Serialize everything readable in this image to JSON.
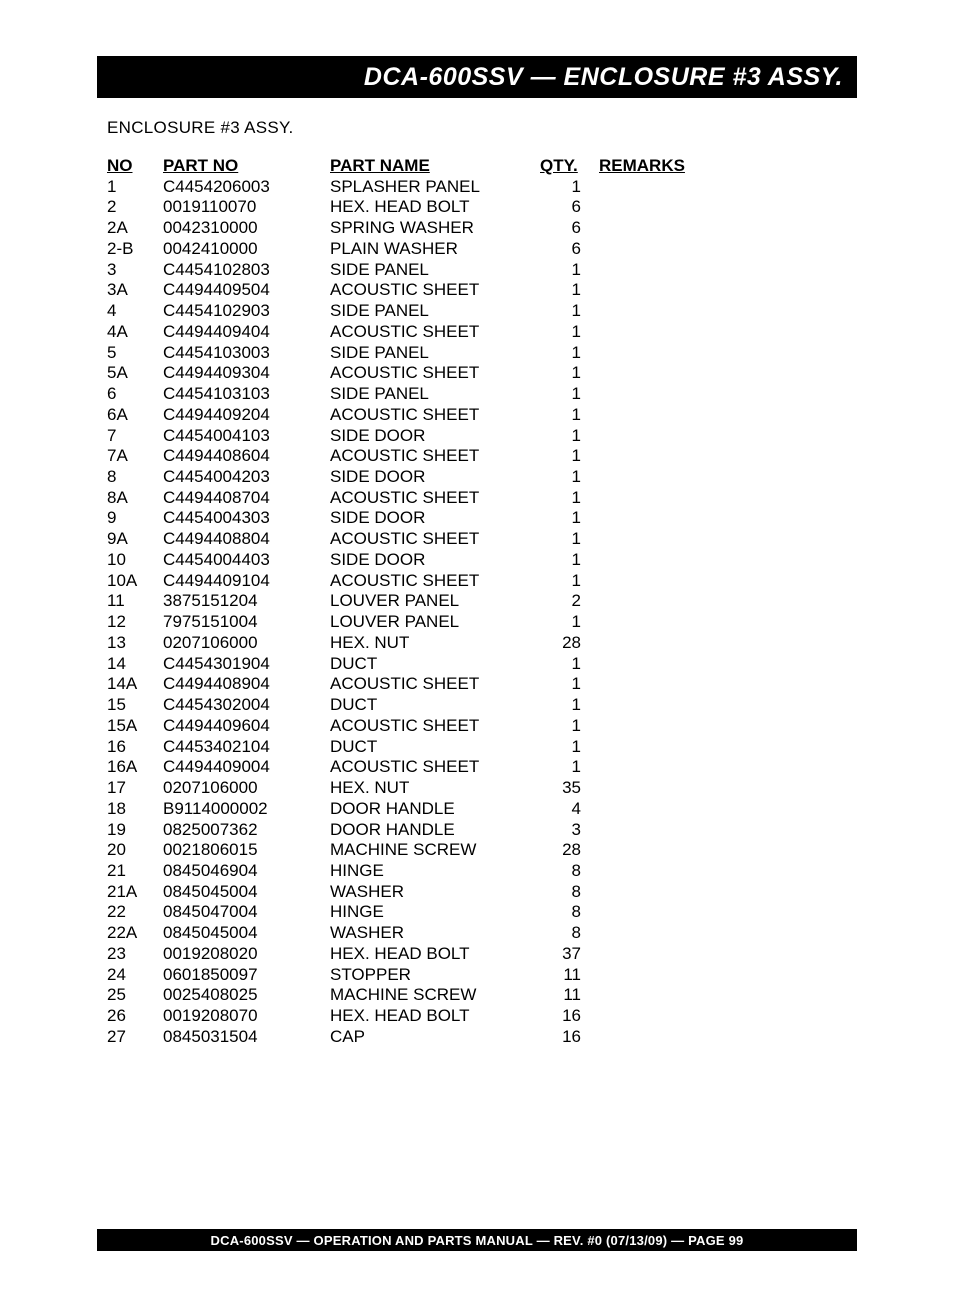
{
  "header": {
    "title": "DCA-600SSV — ENCLOSURE #3 ASSY."
  },
  "section": {
    "title": "ENCLOSURE #3 ASSY."
  },
  "table": {
    "columns": {
      "no": "NO",
      "partno": "PART NO",
      "partname": "PART NAME",
      "qty": "QTY.",
      "remarks": "REMARKS"
    },
    "rows": [
      {
        "no": "1",
        "partno": "C4454206003",
        "partname": "SPLASHER PANEL",
        "qty": "1",
        "remarks": ""
      },
      {
        "no": "2",
        "partno": "0019110070",
        "partname": "HEX. HEAD BOLT",
        "qty": "6",
        "remarks": ""
      },
      {
        "no": "2A",
        "partno": "0042310000",
        "partname": "SPRING WASHER",
        "qty": "6",
        "remarks": ""
      },
      {
        "no": "2-B",
        "partno": "0042410000",
        "partname": "PLAIN WASHER",
        "qty": "6",
        "remarks": ""
      },
      {
        "no": "3",
        "partno": "C4454102803",
        "partname": "SIDE PANEL",
        "qty": "1",
        "remarks": ""
      },
      {
        "no": "3A",
        "partno": "C4494409504",
        "partname": "ACOUSTIC SHEET",
        "qty": "1",
        "remarks": ""
      },
      {
        "no": "4",
        "partno": "C4454102903",
        "partname": "SIDE PANEL",
        "qty": "1",
        "remarks": ""
      },
      {
        "no": "4A",
        "partno": "C4494409404",
        "partname": "ACOUSTIC SHEET",
        "qty": "1",
        "remarks": ""
      },
      {
        "no": "5",
        "partno": "C4454103003",
        "partname": "SIDE PANEL",
        "qty": "1",
        "remarks": ""
      },
      {
        "no": "5A",
        "partno": "C4494409304",
        "partname": "ACOUSTIC SHEET",
        "qty": "1",
        "remarks": ""
      },
      {
        "no": "6",
        "partno": "C4454103103",
        "partname": "SIDE PANEL",
        "qty": "1",
        "remarks": ""
      },
      {
        "no": "6A",
        "partno": "C4494409204",
        "partname": "ACOUSTIC SHEET",
        "qty": "1",
        "remarks": ""
      },
      {
        "no": "7",
        "partno": "C4454004103",
        "partname": "SIDE DOOR",
        "qty": "1",
        "remarks": ""
      },
      {
        "no": "7A",
        "partno": "C4494408604",
        "partname": "ACOUSTIC SHEET",
        "qty": "1",
        "remarks": ""
      },
      {
        "no": "8",
        "partno": "C4454004203",
        "partname": "SIDE DOOR",
        "qty": "1",
        "remarks": ""
      },
      {
        "no": "8A",
        "partno": "C4494408704",
        "partname": "ACOUSTIC SHEET",
        "qty": "1",
        "remarks": ""
      },
      {
        "no": "9",
        "partno": "C4454004303",
        "partname": "SIDE DOOR",
        "qty": "1",
        "remarks": ""
      },
      {
        "no": "9A",
        "partno": "C4494408804",
        "partname": "ACOUSTIC SHEET",
        "qty": "1",
        "remarks": ""
      },
      {
        "no": "10",
        "partno": "C4454004403",
        "partname": "SIDE DOOR",
        "qty": "1",
        "remarks": ""
      },
      {
        "no": "10A",
        "partno": "C4494409104",
        "partname": "ACOUSTIC SHEET",
        "qty": "1",
        "remarks": ""
      },
      {
        "no": "11",
        "partno": "3875151204",
        "partname": "LOUVER PANEL",
        "qty": "2",
        "remarks": ""
      },
      {
        "no": "12",
        "partno": "7975151004",
        "partname": "LOUVER PANEL",
        "qty": "1",
        "remarks": ""
      },
      {
        "no": "13",
        "partno": "0207106000",
        "partname": "HEX. NUT",
        "qty": "28",
        "remarks": ""
      },
      {
        "no": "14",
        "partno": "C4454301904",
        "partname": "DUCT",
        "qty": "1",
        "remarks": ""
      },
      {
        "no": "14A",
        "partno": "C4494408904",
        "partname": "ACOUSTIC SHEET",
        "qty": "1",
        "remarks": ""
      },
      {
        "no": "15",
        "partno": "C4454302004",
        "partname": "DUCT",
        "qty": "1",
        "remarks": ""
      },
      {
        "no": "15A",
        "partno": "C4494409604",
        "partname": "ACOUSTIC SHEET",
        "qty": "1",
        "remarks": ""
      },
      {
        "no": "16",
        "partno": "C4453402104",
        "partname": "DUCT",
        "qty": "1",
        "remarks": ""
      },
      {
        "no": "16A",
        "partno": "C4494409004",
        "partname": "ACOUSTIC SHEET",
        "qty": "1",
        "remarks": ""
      },
      {
        "no": "17",
        "partno": "0207106000",
        "partname": "HEX. NUT",
        "qty": "35",
        "remarks": ""
      },
      {
        "no": "18",
        "partno": "B9114000002",
        "partname": "DOOR HANDLE",
        "qty": "4",
        "remarks": ""
      },
      {
        "no": "19",
        "partno": "0825007362",
        "partname": "DOOR HANDLE",
        "qty": "3",
        "remarks": ""
      },
      {
        "no": "20",
        "partno": "0021806015",
        "partname": "MACHINE SCREW",
        "qty": "28",
        "remarks": ""
      },
      {
        "no": "21",
        "partno": "0845046904",
        "partname": "HINGE",
        "qty": "8",
        "remarks": ""
      },
      {
        "no": "21A",
        "partno": "0845045004",
        "partname": "WASHER",
        "qty": "8",
        "remarks": ""
      },
      {
        "no": "22",
        "partno": "0845047004",
        "partname": "HINGE",
        "qty": "8",
        "remarks": ""
      },
      {
        "no": "22A",
        "partno": "0845045004",
        "partname": "WASHER",
        "qty": "8",
        "remarks": ""
      },
      {
        "no": "23",
        "partno": "0019208020",
        "partname": "HEX. HEAD BOLT",
        "qty": "37",
        "remarks": ""
      },
      {
        "no": "24",
        "partno": "0601850097",
        "partname": "STOPPER",
        "qty": "11",
        "remarks": ""
      },
      {
        "no": "25",
        "partno": "0025408025",
        "partname": "MACHINE SCREW",
        "qty": "11",
        "remarks": ""
      },
      {
        "no": "26",
        "partno": "0019208070",
        "partname": "HEX. HEAD BOLT",
        "qty": "16",
        "remarks": ""
      },
      {
        "no": "27",
        "partno": "0845031504",
        "partname": "CAP",
        "qty": "16",
        "remarks": ""
      }
    ]
  },
  "footer": {
    "text": "DCA-600SSV — OPERATION AND PARTS MANUAL — REV. #0  (07/13/09) — PAGE 99"
  },
  "style": {
    "header_bg": "#000000",
    "header_fg": "#ffffff",
    "page_bg": "#ffffff",
    "body_font": "Arial, Helvetica, sans-serif",
    "header_fontsize": 25,
    "body_fontsize": 17,
    "footer_fontsize": 13
  }
}
